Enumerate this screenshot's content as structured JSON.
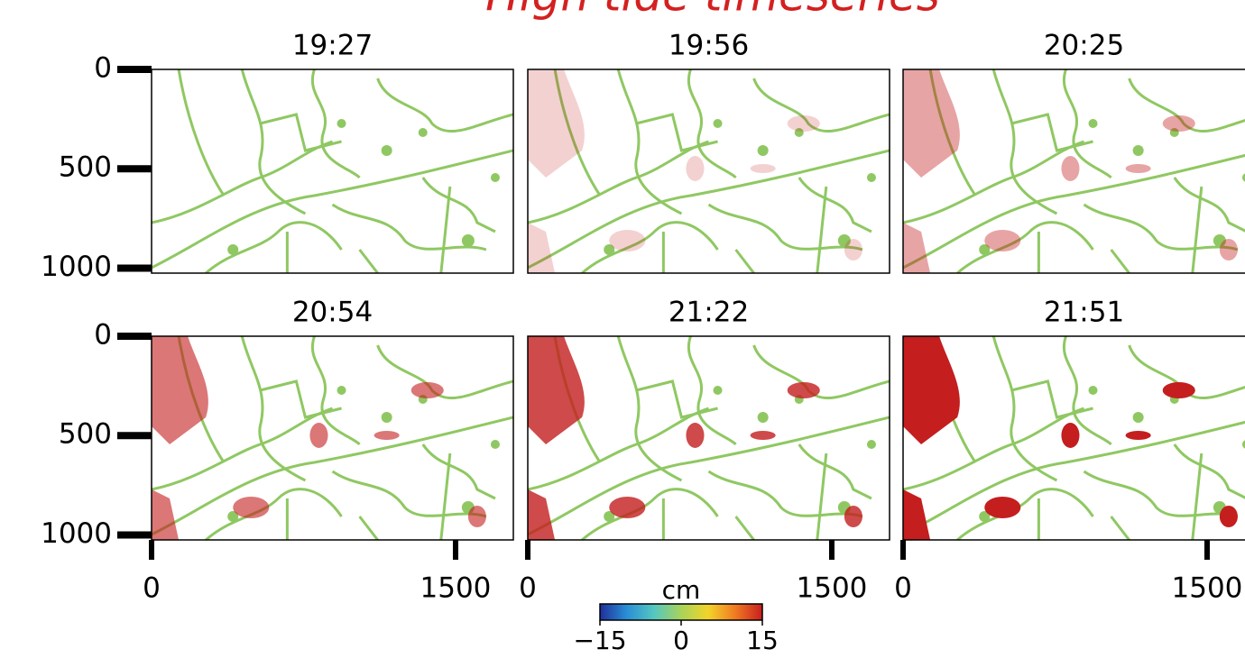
{
  "chart_data": {
    "type": "image-grid",
    "title": "High tide timeseries",
    "panels": [
      {
        "title": "19:27"
      },
      {
        "title": "19:56"
      },
      {
        "title": "20:25"
      },
      {
        "title": "20:54"
      },
      {
        "title": "21:22"
      },
      {
        "title": "21:51"
      }
    ],
    "columns": 3,
    "xlim": [
      0,
      1785
    ],
    "xticks": [
      0,
      1500
    ],
    "ylim": [
      1025,
      0
    ],
    "yticks": [
      0,
      500,
      1000
    ],
    "colorbar": {
      "label": "cm",
      "lim": [
        -15,
        15
      ],
      "ticks": [
        {
          "value": -15,
          "label": "−15"
        },
        0,
        15
      ],
      "colors": [
        "#1f2f9a",
        "#2a8fd6",
        "#55c7c0",
        "#a8d35a",
        "#f2d42a",
        "#f07a22",
        "#c81e1e"
      ]
    }
  }
}
